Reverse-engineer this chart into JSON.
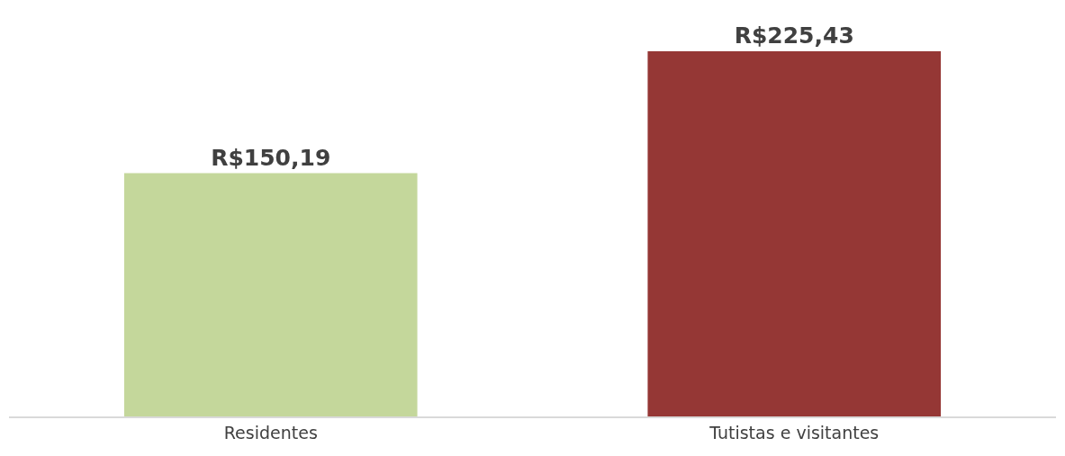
{
  "chart_data": {
    "type": "bar",
    "categories": [
      "Residentes",
      "Tutistas e visitantes"
    ],
    "values": [
      150.19,
      225.43
    ],
    "value_labels": [
      "R$150,19",
      "R$225,43"
    ],
    "colors": [
      "#c4d79b",
      "#953735"
    ]
  }
}
